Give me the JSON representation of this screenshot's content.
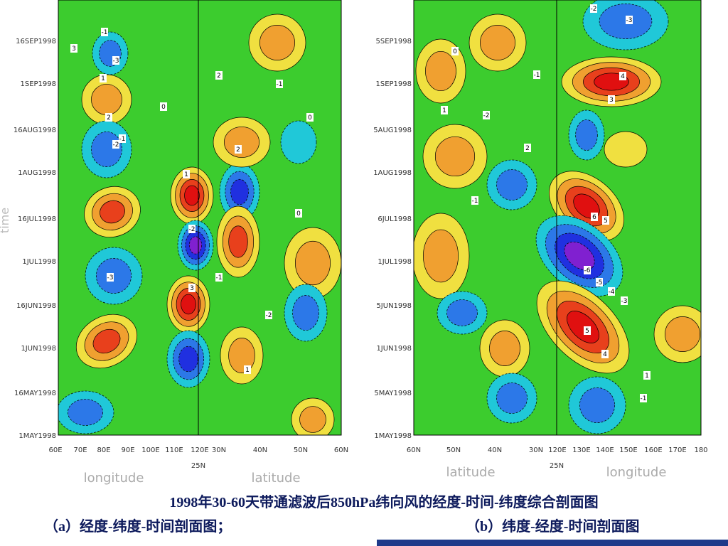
{
  "panels": [
    {
      "y_ticks": [
        "16SEP1998",
        "1SEP1998",
        "16AUG1998",
        "1AUG1998",
        "16JUL1998",
        "1JUL1998",
        "16JUN1998",
        "1JUN1998",
        "16MAY1998",
        "1MAY1998"
      ],
      "x_ticks": [
        "60E",
        "70E",
        "80E",
        "90E",
        "100E",
        "110E",
        "120E",
        "30N",
        "40N",
        "50N",
        "60N"
      ],
      "split_label": "25N",
      "x_label_left": "longitude",
      "x_label_right": "latitude",
      "y_label": "time",
      "contour_labels": [
        "-1",
        "-3",
        "3",
        "1",
        "2",
        "-2",
        "-1",
        "0",
        "1",
        "-2",
        "2",
        "0",
        "-1",
        "3",
        "-3",
        "2",
        "-2",
        "1",
        "-1",
        "0"
      ]
    },
    {
      "y_ticks": [
        "5SEP1998",
        "1SEP1998",
        "5AUG1998",
        "1AUG1998",
        "6JUL1998",
        "1JUL1998",
        "5JUN1998",
        "1JUN1998",
        "5MAY1998",
        "1MAY1998"
      ],
      "x_ticks": [
        "60N",
        "50N",
        "40N",
        "30N",
        "120E",
        "130E",
        "140E",
        "150E",
        "160E",
        "170E",
        "180"
      ],
      "split_label": "25N",
      "x_label_left": "latitude",
      "x_label_right": "longitude",
      "contour_labels": [
        "-2",
        "-3",
        "4",
        "3",
        "-1",
        "0",
        "1",
        "-2",
        "2",
        "-1",
        "6",
        "5",
        "-6",
        "-5",
        "-4",
        "-3",
        "5",
        "4",
        "1",
        "-1"
      ]
    }
  ],
  "caption": {
    "line1": "1998年30-60天带通滤波后850hPa纬向风的经度-时间-纬度综合剖面图",
    "part_a": "（a）经度-纬度-时间剖面图；",
    "part_b": "（b）纬度-经度-时间剖面图"
  }
}
